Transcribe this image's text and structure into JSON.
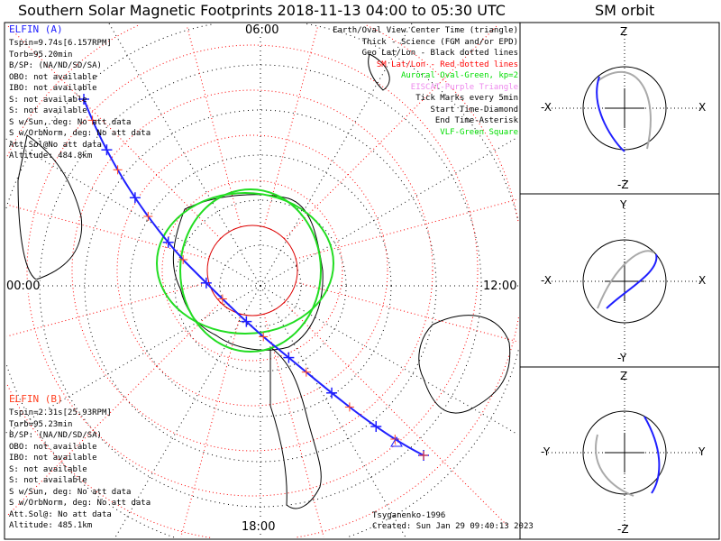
{
  "title": "Southern Solar Magnetic Footprints 2018-11-13 04:00 to 05:30 UTC",
  "sm_title": "SM orbit",
  "map_labels": {
    "top": "06:00",
    "bottom": "18:00",
    "left": "00:00",
    "right": "12:00"
  },
  "legend": [
    {
      "text": "Earth/Oval View Center Time (triangle)",
      "color": "#000000"
    },
    {
      "text": "Thick - Science (FGM and/or EPD)",
      "color": "#000000"
    },
    {
      "text": "Geo Lat/Lon - Black dotted lines",
      "color": "#000000"
    },
    {
      "text": "SM Lat/Lon - Red dotted lines",
      "color": "#ff0000"
    },
    {
      "text": "Auroral Oval-Green, kp=2",
      "color": "#00dd00"
    },
    {
      "text": "EISCAT-Purple Triangle",
      "color": "#ee88ee"
    },
    {
      "text": "Tick Marks every 5min",
      "color": "#000000"
    },
    {
      "text": "Start Time-Diamond",
      "color": "#000000"
    },
    {
      "text": "End Time-Asterisk",
      "color": "#000000"
    },
    {
      "text": "VLF-Green Square",
      "color": "#00dd00"
    }
  ],
  "elfin_a": {
    "name": "ELFIN (A)",
    "color": "#2020ff",
    "lines": [
      "Tspin=9.74s[6.157RPM]",
      "Torb=95.20min",
      "B/SP: (NA/ND/SD/SA)",
      "OBO: not available",
      "IBO: not available",
      "S: not available",
      "S: not available",
      "S w/Sun, deg: No att data",
      "S w/OrbNorm, deg: No att data",
      "Att.Sol@No att data",
      "Altitude: 484.8km"
    ]
  },
  "elfin_b": {
    "name": "ELFIN (B)",
    "color": "#ff4020",
    "lines": [
      "Tspin=2.31s[25.93RPM]",
      "Torb=95.23min",
      "B/SP: (NA/ND/SD/SA)",
      "OBO: not available",
      "IBO: not available",
      "S: not available",
      "S: not available",
      "S w/Sun, deg: No att data",
      "S w/OrbNorm, deg: No att data",
      "Att.Sol@: No att data",
      "Altitude: 485.1km"
    ]
  },
  "footer": {
    "model": "Tsyganenko-1996",
    "created": "Created: Sun Jan 29 09:40:13 2023"
  },
  "sm_panels": [
    {
      "top": "Z",
      "bottom": "-Z",
      "left": "-X",
      "right": "X"
    },
    {
      "top": "Y",
      "bottom": "-Y",
      "left": "-X",
      "right": "X"
    },
    {
      "top": "Z",
      "bottom": "-Z",
      "left": "-Y",
      "right": "Y"
    }
  ],
  "chart_data": {
    "type": "scatter",
    "title": "Southern Solar Magnetic Footprints 2018-11-13 04:00 to 05:30 UTC",
    "series": [
      {
        "name": "ELFIN (A)"
      },
      {
        "name": "ELFIN (B)"
      }
    ]
  }
}
